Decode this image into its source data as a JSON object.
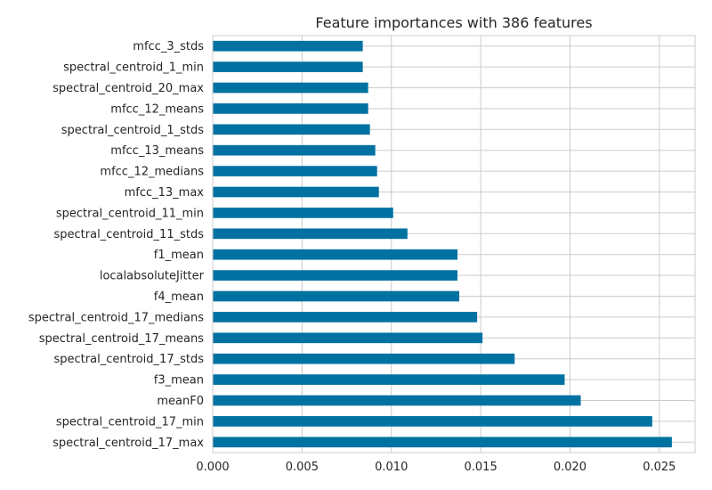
{
  "chart_data": {
    "type": "bar",
    "orientation": "horizontal",
    "title": "Feature importances with 386 features",
    "xlabel": "",
    "ylabel": "",
    "categories": [
      "spectral_centroid_17_max",
      "spectral_centroid_17_min",
      "meanF0",
      "f3_mean",
      "spectral_centroid_17_stds",
      "spectral_centroid_17_means",
      "spectral_centroid_17_medians",
      "f4_mean",
      "localabsoluteJitter",
      "f1_mean",
      "spectral_centroid_11_stds",
      "spectral_centroid_11_min",
      "mfcc_13_max",
      "mfcc_12_medians",
      "mfcc_13_means",
      "spectral_centroid_1_stds",
      "mfcc_12_means",
      "spectral_centroid_20_max",
      "spectral_centroid_1_min",
      "mfcc_3_stds"
    ],
    "values": [
      0.0257,
      0.0246,
      0.0206,
      0.0197,
      0.0169,
      0.0151,
      0.0148,
      0.0138,
      0.0137,
      0.0137,
      0.0109,
      0.0101,
      0.0093,
      0.0092,
      0.0091,
      0.0088,
      0.0087,
      0.0087,
      0.0084,
      0.0084
    ],
    "xlim": [
      0,
      0.027
    ],
    "xticks": [
      "0.000",
      "0.005",
      "0.010",
      "0.015",
      "0.020",
      "0.025"
    ],
    "xtick_values": [
      0,
      0.005,
      0.01,
      0.015,
      0.02,
      0.025
    ],
    "grid": true,
    "legend": "none",
    "bar_color": "#0072a2"
  }
}
